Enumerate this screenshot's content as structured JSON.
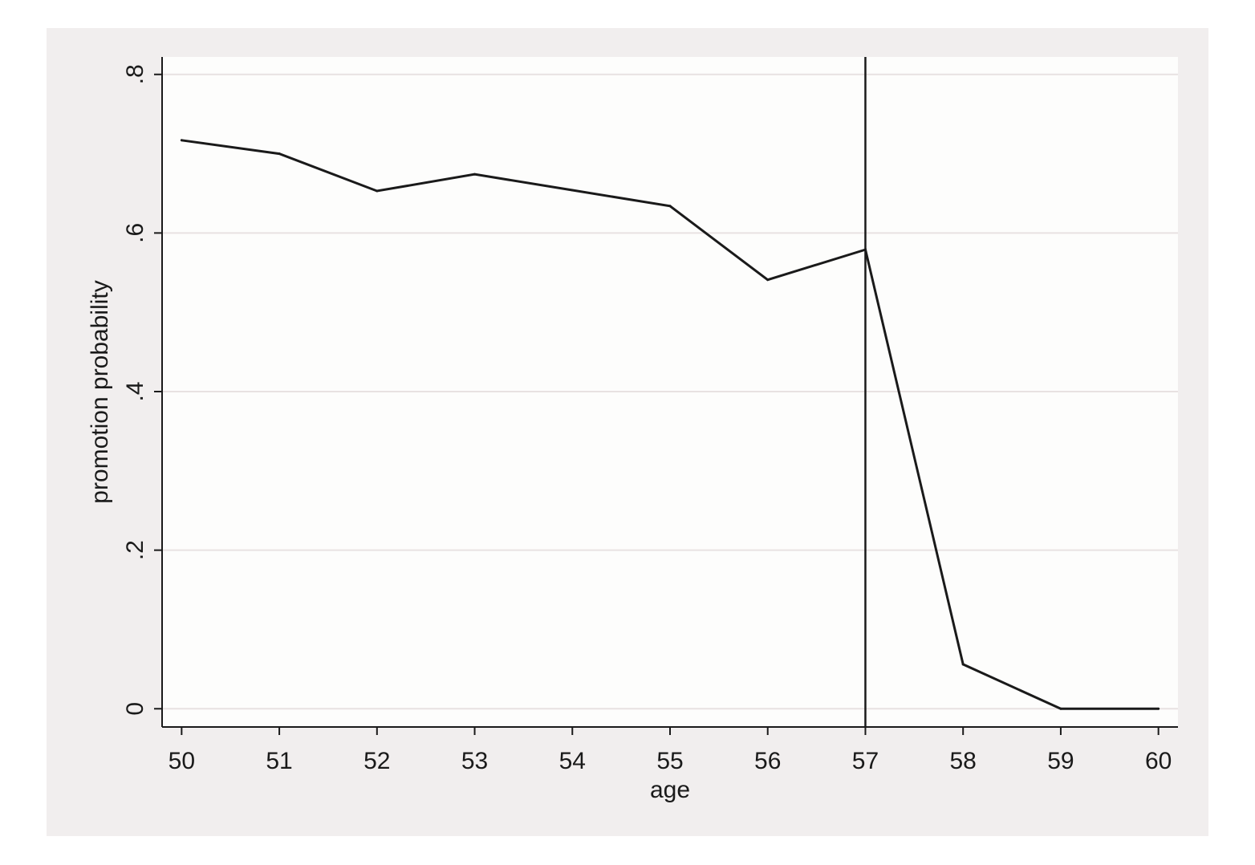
{
  "chart_data": {
    "type": "line",
    "title": "",
    "xlabel": "age",
    "ylabel": "promotion probability",
    "x": [
      50,
      51,
      52,
      53,
      54,
      55,
      56,
      57,
      58,
      59,
      60
    ],
    "series": [
      {
        "values": [
          0.717,
          0.7,
          0.653,
          0.674,
          0.654,
          0.634,
          0.541,
          0.579,
          0.056,
          0.0,
          0.0
        ]
      }
    ],
    "xlim": [
      49.8,
      60.2
    ],
    "ylim": [
      -0.023,
      0.822
    ],
    "x_ticks": [
      50,
      51,
      52,
      53,
      54,
      55,
      56,
      57,
      58,
      59,
      60
    ],
    "x_tick_labels": [
      "50",
      "51",
      "52",
      "53",
      "54",
      "55",
      "56",
      "57",
      "58",
      "59",
      "60"
    ],
    "y_ticks": [
      0,
      0.2,
      0.4,
      0.6,
      0.8
    ],
    "y_tick_labels": [
      "0",
      ".2",
      ".4",
      ".6",
      ".8"
    ],
    "reference_line_x": 57,
    "grid": true,
    "legend": "none",
    "colors": {
      "outer_background": "#f1eeee",
      "plot_background": "#fdfdfc",
      "gridline": "#e8e2e2",
      "line": "#1a1a1a"
    }
  }
}
